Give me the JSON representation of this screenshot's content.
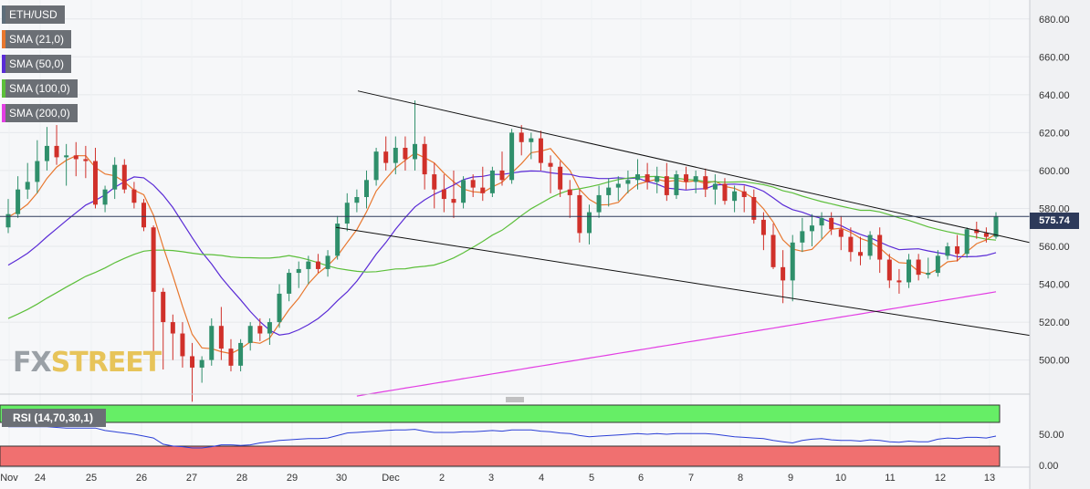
{
  "legend": [
    {
      "label": "ETH/USD",
      "color": "#5d6d7a"
    },
    {
      "label": "SMA (21,0)",
      "color": "#e8772e"
    },
    {
      "label": "SMA (50,0)",
      "color": "#5a2bd6"
    },
    {
      "label": "SMA (100,0)",
      "color": "#5cbf3a"
    },
    {
      "label": "SMA (200,0)",
      "color": "#e23ee3"
    }
  ],
  "logo": {
    "part1": "FX",
    "part2": "STREET"
  },
  "rsi_label": "RSI (14,70,30,1)",
  "current_price": "575.74",
  "colors": {
    "up": "#2f8f6b",
    "down": "#d0302a",
    "line": "#111111"
  },
  "chart_data": {
    "type": "candlestick",
    "symbol": "ETH/USD",
    "ylim": [
      482,
      690
    ],
    "yticks": [
      "500.00",
      "520.00",
      "540.00",
      "560.00",
      "580.00",
      "600.00",
      "620.00",
      "640.00",
      "660.00",
      "680.00"
    ],
    "x_labels": [
      "Nov",
      "24",
      "25",
      "26",
      "27",
      "28",
      "29",
      "30",
      "Dec",
      "2",
      "3",
      "4",
      "5",
      "6",
      "7",
      "8",
      "9",
      "10",
      "11",
      "12",
      "13"
    ],
    "candles": [
      [
        570,
        585,
        567,
        577
      ],
      [
        577,
        597,
        575,
        590
      ],
      [
        590,
        604,
        585,
        594
      ],
      [
        594,
        616,
        588,
        605
      ],
      [
        605,
        623,
        600,
        613
      ],
      [
        613,
        624,
        603,
        607
      ],
      [
        607,
        614,
        592,
        608
      ],
      [
        608,
        615,
        597,
        606
      ],
      [
        606,
        613,
        596,
        605
      ],
      [
        605,
        612,
        580,
        582
      ],
      [
        582,
        592,
        578,
        590
      ],
      [
        590,
        607,
        585,
        603
      ],
      [
        603,
        606,
        588,
        590
      ],
      [
        590,
        594,
        580,
        583
      ],
      [
        583,
        585,
        568,
        570
      ],
      [
        570,
        571,
        503,
        536
      ],
      [
        536,
        538,
        495,
        520
      ],
      [
        520,
        524,
        500,
        514
      ],
      [
        514,
        520,
        496,
        502
      ],
      [
        502,
        509,
        478,
        496
      ],
      [
        496,
        502,
        488,
        500
      ],
      [
        500,
        522,
        497,
        518
      ],
      [
        518,
        528,
        500,
        506
      ],
      [
        506,
        511,
        494,
        497
      ],
      [
        497,
        511,
        494,
        509
      ],
      [
        509,
        520,
        505,
        518
      ],
      [
        518,
        522,
        510,
        514
      ],
      [
        514,
        522,
        508,
        520
      ],
      [
        520,
        540,
        517,
        535
      ],
      [
        535,
        548,
        531,
        546
      ],
      [
        546,
        552,
        538,
        548
      ],
      [
        548,
        555,
        540,
        552
      ],
      [
        552,
        556,
        546,
        548
      ],
      [
        548,
        558,
        544,
        555
      ],
      [
        555,
        576,
        553,
        572
      ],
      [
        572,
        588,
        568,
        583
      ],
      [
        583,
        590,
        578,
        586
      ],
      [
        586,
        600,
        580,
        595
      ],
      [
        595,
        612,
        592,
        610
      ],
      [
        610,
        618,
        600,
        604
      ],
      [
        604,
        618,
        598,
        612
      ],
      [
        612,
        618,
        600,
        606
      ],
      [
        606,
        637,
        600,
        614
      ],
      [
        614,
        618,
        590,
        598
      ],
      [
        598,
        604,
        580,
        590
      ],
      [
        590,
        598,
        578,
        585
      ],
      [
        585,
        600,
        575,
        583
      ],
      [
        583,
        597,
        580,
        595
      ],
      [
        595,
        598,
        586,
        591
      ],
      [
        591,
        602,
        584,
        588
      ],
      [
        588,
        602,
        586,
        600
      ],
      [
        600,
        610,
        592,
        595
      ],
      [
        595,
        622,
        593,
        620
      ],
      [
        620,
        624,
        608,
        615
      ],
      [
        615,
        620,
        606,
        617
      ],
      [
        617,
        621,
        600,
        604
      ],
      [
        604,
        608,
        588,
        602
      ],
      [
        602,
        605,
        586,
        590
      ],
      [
        590,
        595,
        575,
        587
      ],
      [
        587,
        590,
        562,
        567
      ],
      [
        567,
        582,
        561,
        578
      ],
      [
        578,
        592,
        575,
        587
      ],
      [
        587,
        596,
        581,
        591
      ],
      [
        591,
        597,
        584,
        593
      ],
      [
        593,
        600,
        588,
        595
      ],
      [
        595,
        606,
        590,
        598
      ],
      [
        598,
        604,
        590,
        594
      ],
      [
        594,
        602,
        588,
        597
      ],
      [
        597,
        604,
        584,
        587
      ],
      [
        587,
        600,
        585,
        598
      ],
      [
        598,
        602,
        590,
        594
      ],
      [
        594,
        600,
        588,
        597
      ],
      [
        597,
        601,
        586,
        590
      ],
      [
        590,
        598,
        582,
        593
      ],
      [
        593,
        596,
        582,
        584
      ],
      [
        584,
        592,
        578,
        589
      ],
      [
        589,
        592,
        578,
        586
      ],
      [
        586,
        590,
        572,
        574
      ],
      [
        574,
        578,
        558,
        566
      ],
      [
        566,
        572,
        548,
        549
      ],
      [
        549,
        558,
        530,
        542
      ],
      [
        542,
        566,
        531,
        562
      ],
      [
        562,
        575,
        557,
        568
      ],
      [
        568,
        577,
        560,
        571
      ],
      [
        571,
        578,
        564,
        575
      ],
      [
        575,
        578,
        566,
        569
      ],
      [
        569,
        576,
        558,
        565
      ],
      [
        565,
        570,
        552,
        557
      ],
      [
        557,
        565,
        550,
        555
      ],
      [
        555,
        568,
        553,
        566
      ],
      [
        566,
        570,
        546,
        553
      ],
      [
        553,
        556,
        538,
        542
      ],
      [
        542,
        548,
        535,
        541
      ],
      [
        541,
        556,
        538,
        553
      ],
      [
        553,
        556,
        542,
        545
      ],
      [
        545,
        554,
        543,
        546
      ],
      [
        546,
        558,
        544,
        555
      ],
      [
        555,
        562,
        553,
        560
      ],
      [
        560,
        566,
        552,
        556
      ],
      [
        556,
        570,
        554,
        569
      ],
      [
        569,
        573,
        564,
        567
      ],
      [
        567,
        570,
        562,
        565
      ],
      [
        565,
        578,
        564,
        575.74
      ]
    ],
    "rsi_zones": {
      "upper": 70,
      "lower": 30
    },
    "rsi_ticks": [
      "0.00",
      "50.00"
    ],
    "rsi": [
      62,
      62,
      62,
      62,
      62,
      61,
      60,
      60,
      60,
      60,
      56,
      54,
      52,
      50,
      47,
      44,
      34,
      31,
      30,
      28,
      28,
      30,
      33,
      33,
      32,
      33,
      36,
      38,
      40,
      41,
      42,
      43,
      43,
      44,
      48,
      52,
      53,
      54,
      55,
      56,
      57,
      57,
      58,
      55,
      53,
      53,
      53,
      54,
      54,
      55,
      56,
      55,
      57,
      57,
      57,
      55,
      54,
      52,
      51,
      48,
      46,
      47,
      48,
      49,
      50,
      51,
      50,
      51,
      50,
      51,
      51,
      51,
      51,
      50,
      48,
      46,
      45,
      44,
      43,
      40,
      38,
      36,
      40,
      42,
      43,
      41,
      40,
      40,
      39,
      41,
      40,
      38,
      37,
      39,
      38,
      38,
      42,
      44,
      43,
      45,
      45,
      44,
      47
    ]
  }
}
